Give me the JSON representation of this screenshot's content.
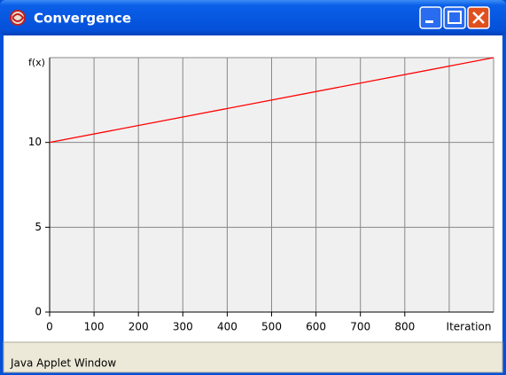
{
  "window": {
    "title": "Convergence",
    "status": "Java Applet Window"
  },
  "chart_data": {
    "type": "line",
    "ylabel": "f(x)",
    "xlabel": "Iteration",
    "xlim": [
      0,
      1000
    ],
    "ylim": [
      0,
      15
    ],
    "xticks": [
      0,
      100,
      200,
      300,
      400,
      500,
      600,
      700,
      800
    ],
    "xgrid": [
      100,
      200,
      300,
      400,
      500,
      600,
      700,
      800,
      900,
      1000
    ],
    "yticks": [
      0,
      5,
      10
    ],
    "ygrid": [
      5,
      10,
      15
    ],
    "grid": true,
    "series": [
      {
        "color": "#ff0000",
        "x": [
          0,
          1000
        ],
        "values": [
          10,
          15
        ]
      }
    ]
  }
}
